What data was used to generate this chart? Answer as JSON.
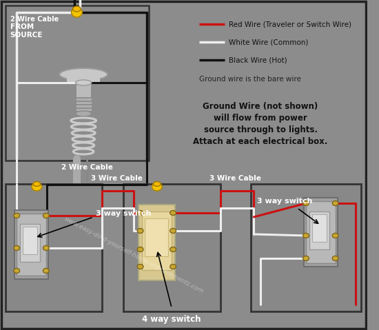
{
  "bg_color": "#8c8c8c",
  "inner_bg": "#8c8c8c",
  "border_color": "#2a2a2a",
  "legend_items": [
    {
      "label": "Red Wire (Traveler or Switch Wire)",
      "color": "#cc1111",
      "lw": 2.5
    },
    {
      "label": "White Wire (Common)",
      "color": "#eeeeee",
      "lw": 2.5
    },
    {
      "label": "Black Wire (Hot)",
      "color": "#111111",
      "lw": 2.5
    }
  ],
  "legend_note": "Ground wire is the bare wire",
  "ground_note_line1": "Ground Wire (not shown)",
  "ground_note_line2": "will flow from power",
  "ground_note_line3": "source through to lights.",
  "ground_note_line4": "Attach at each electrical box.",
  "watermark": "www.easy-do-it-yourself-home-improvements.com",
  "label_2wire_top": "2 Wire Cable",
  "label_2wire_bottom": "2 Wire Cable",
  "label_3wire_left": "3 Wire Cable",
  "label_3wire_right": "3 Wire Cable",
  "label_from_source": "FROM\nSOURCE",
  "label_3way_left": "3 way switch",
  "label_3way_right": "3 way switch",
  "label_4way": "4 way switch",
  "wire_red": "#cc1111",
  "wire_white": "#eeeeee",
  "wire_black": "#111111",
  "wire_yellow": "#f0c000",
  "wire_gray": "#aaaaaa"
}
